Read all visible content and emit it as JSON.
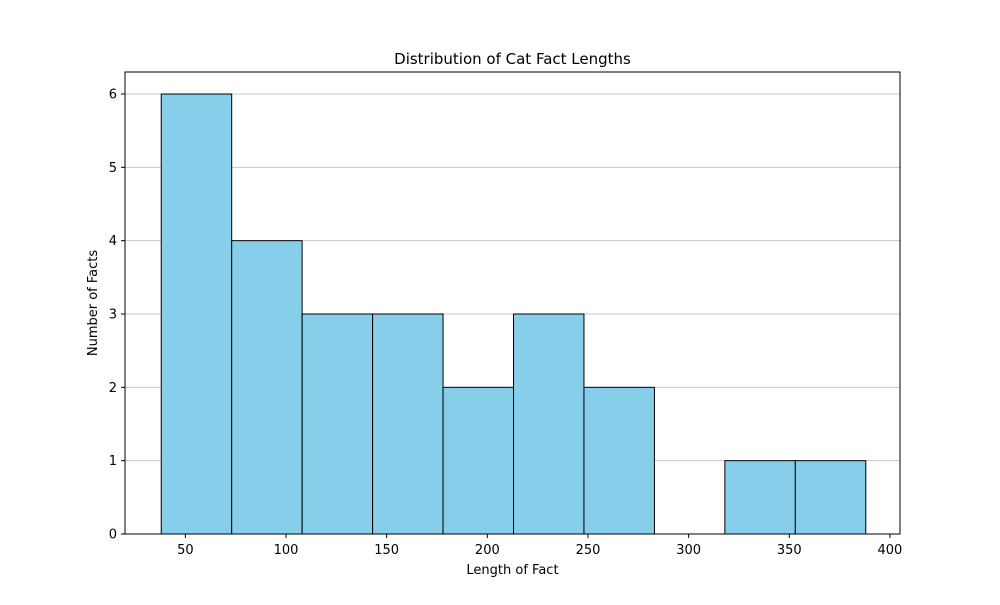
{
  "colors": {
    "bar_fill": "#87CEEB",
    "bar_edge": "#000000",
    "grid": "#c8c8c8",
    "axes": "#000000",
    "background": "#ffffff"
  },
  "chart_data": {
    "type": "bar",
    "title": "Distribution of Cat Fact Lengths",
    "xlabel": "Length of Fact",
    "ylabel": "Number of Facts",
    "xlim": [
      20,
      405
    ],
    "ylim": [
      0,
      6.3
    ],
    "x_ticks": [
      50,
      100,
      150,
      200,
      250,
      300,
      350,
      400
    ],
    "y_ticks": [
      0,
      1,
      2,
      3,
      4,
      5,
      6
    ],
    "grid": "y-axis only",
    "bins": [
      {
        "start": 38,
        "end": 73,
        "count": 6
      },
      {
        "start": 73,
        "end": 108,
        "count": 4
      },
      {
        "start": 108,
        "end": 143,
        "count": 3
      },
      {
        "start": 143,
        "end": 178,
        "count": 3
      },
      {
        "start": 178,
        "end": 213,
        "count": 2
      },
      {
        "start": 213,
        "end": 248,
        "count": 3
      },
      {
        "start": 248,
        "end": 283,
        "count": 2
      },
      {
        "start": 283,
        "end": 318,
        "count": 0
      },
      {
        "start": 318,
        "end": 353,
        "count": 1
      },
      {
        "start": 353,
        "end": 388,
        "count": 1
      }
    ]
  }
}
